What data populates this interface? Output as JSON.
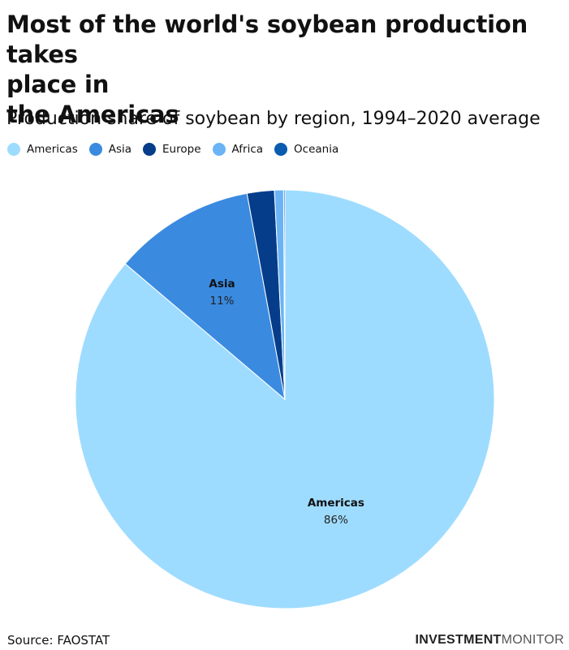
{
  "title_lines": [
    "Most of the world's soybean production takes",
    "place in",
    "the Americas"
  ],
  "subtitle": "Production share of soybean by region, 1994–2020 average",
  "source": "Source: FAOSTAT",
  "brand": {
    "bold": "INVESTMENT",
    "light": "MONITOR"
  },
  "chart_data": {
    "type": "pie",
    "title": "Most of the world's soybean production takes place in the Americas",
    "subtitle": "Production share of soybean by region, 1994–2020 average",
    "legend_position": "top-left",
    "slices": [
      {
        "name": "Americas",
        "value": 86.2,
        "label": "86%",
        "color": "#9edcff",
        "show_label": true
      },
      {
        "name": "Asia",
        "value": 10.9,
        "label": "11%",
        "color": "#3a8ae0",
        "show_label": true
      },
      {
        "name": "Europe",
        "value": 2.1,
        "label": "",
        "color": "#053d8a",
        "show_label": false
      },
      {
        "name": "Africa",
        "value": 0.7,
        "label": "",
        "color": "#6ab4f5",
        "show_label": false
      },
      {
        "name": "Oceania",
        "value": 0.1,
        "label": "",
        "color": "#0a5cb0",
        "show_label": false
      }
    ]
  }
}
